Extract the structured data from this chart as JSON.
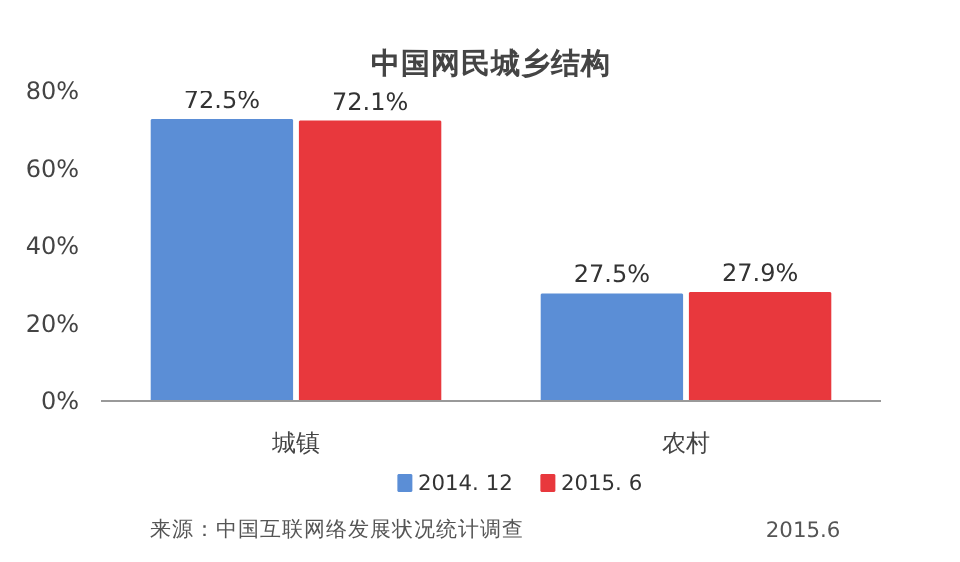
{
  "chart_data": {
    "type": "bar",
    "title": "中国网民城乡结构",
    "categories": [
      "城镇",
      "农村"
    ],
    "series": [
      {
        "name": "2014. 12",
        "color": "#5b8ed6",
        "values": [
          72.5,
          27.5
        ]
      },
      {
        "name": "2015. 6",
        "color": "#e8383d",
        "values": [
          72.1,
          27.9
        ]
      }
    ],
    "ylim": [
      0,
      80
    ],
    "yticks": [
      {
        "value": 0,
        "label": "0%"
      },
      {
        "value": 20,
        "label": "20%"
      },
      {
        "value": 40,
        "label": "40%"
      },
      {
        "value": 60,
        "label": "60%"
      },
      {
        "value": 80,
        "label": "80%"
      }
    ],
    "value_labels": [
      [
        "72.5%",
        "27.5%"
      ],
      [
        "72.1%",
        "27.9%"
      ]
    ],
    "grid": false,
    "legend": "bottom",
    "annotations": [
      "来源：中国互联网络发展状况统计调查",
      "2015.6"
    ]
  }
}
